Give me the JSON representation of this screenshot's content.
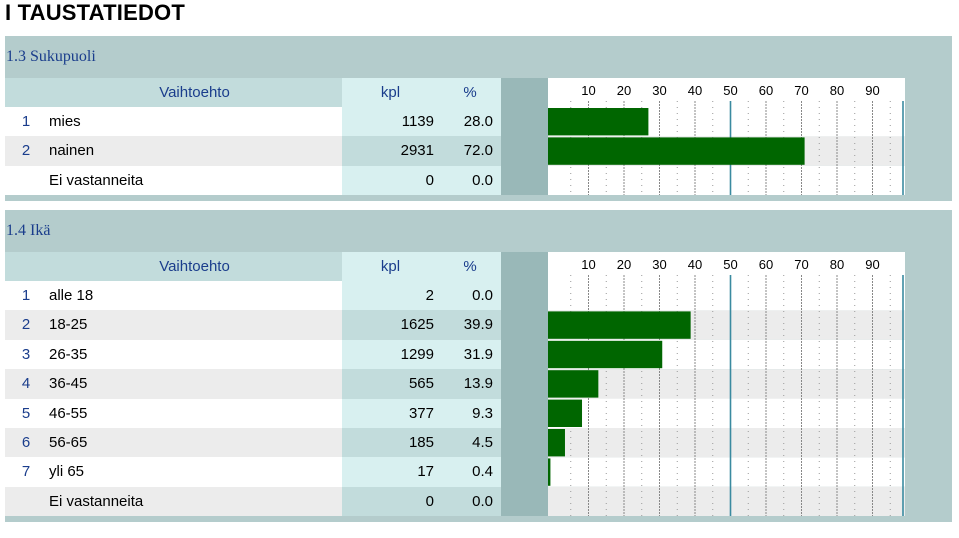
{
  "page_title": "I TAUSTATIEDOT",
  "column_headers": {
    "option": "Vaihtoehto",
    "count": "kpl",
    "percent": "%"
  },
  "axis_ticks": [
    "10",
    "20",
    "30",
    "40",
    "50",
    "60",
    "70",
    "80",
    "90"
  ],
  "colors": {
    "bar": "#006600",
    "panel": "#b4cccc",
    "header_text": "#1a3d8c"
  },
  "sections": [
    {
      "title": "1.3 Sukupuoli",
      "rows": [
        {
          "num": "1",
          "label": "mies",
          "kpl": "1139",
          "pct": "28.0",
          "value": 28.0
        },
        {
          "num": "2",
          "label": "nainen",
          "kpl": "2931",
          "pct": "72.0",
          "value": 72.0
        },
        {
          "num": "",
          "label": "Ei vastanneita",
          "kpl": "0",
          "pct": "0.0",
          "value": 0.0
        }
      ]
    },
    {
      "title": "1.4 Ikä",
      "rows": [
        {
          "num": "1",
          "label": "alle 18",
          "kpl": "2",
          "pct": "0.0",
          "value": 0.0
        },
        {
          "num": "2",
          "label": "18-25",
          "kpl": "1625",
          "pct": "39.9",
          "value": 39.9
        },
        {
          "num": "3",
          "label": "26-35",
          "kpl": "1299",
          "pct": "31.9",
          "value": 31.9
        },
        {
          "num": "4",
          "label": "36-45",
          "kpl": "565",
          "pct": "13.9",
          "value": 13.9
        },
        {
          "num": "5",
          "label": "46-55",
          "kpl": "377",
          "pct": "9.3",
          "value": 9.3
        },
        {
          "num": "6",
          "label": "56-65",
          "kpl": "185",
          "pct": "4.5",
          "value": 4.5
        },
        {
          "num": "7",
          "label": "yli 65",
          "kpl": "17",
          "pct": "0.4",
          "value": 0.4
        },
        {
          "num": "",
          "label": "Ei vastanneita",
          "kpl": "0",
          "pct": "0.0",
          "value": 0.0
        }
      ]
    }
  ],
  "chart_data": [
    {
      "type": "bar",
      "orientation": "horizontal",
      "categories": [
        "mies",
        "nainen",
        "Ei vastanneita"
      ],
      "values": [
        28.0,
        72.0,
        0.0
      ],
      "xlim": [
        0,
        100
      ]
    },
    {
      "type": "bar",
      "orientation": "horizontal",
      "categories": [
        "alle 18",
        "18-25",
        "26-35",
        "36-45",
        "46-55",
        "56-65",
        "yli 65",
        "Ei vastanneita"
      ],
      "values": [
        0.0,
        39.9,
        31.9,
        13.9,
        9.3,
        4.5,
        0.4,
        0.0
      ],
      "xlim": [
        0,
        100
      ]
    }
  ]
}
